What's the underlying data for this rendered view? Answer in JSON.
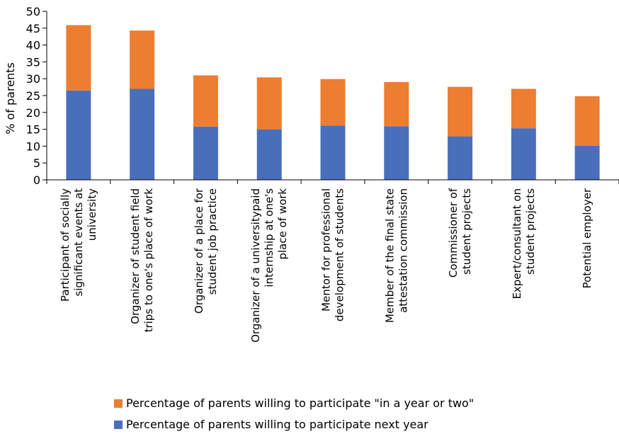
{
  "chart_data": {
    "type": "bar",
    "stacked": true,
    "ylabel": "% of parents",
    "ylim": [
      0,
      50
    ],
    "yticks": [
      0,
      5,
      10,
      15,
      20,
      25,
      30,
      35,
      40,
      45,
      50
    ],
    "categories": [
      [
        "Participant of socially",
        "significant events at",
        "university"
      ],
      [
        "Organizer of student field",
        "trips to one's place of work"
      ],
      [
        "Organizer of a place for",
        "student job practice"
      ],
      [
        "Organizer of a universitypaid",
        "internship at one's",
        "place of work"
      ],
      [
        "Mentor for professional",
        "development of students"
      ],
      [
        "Member of the final state",
        "attestation commission"
      ],
      [
        "Commissioner of",
        "student projects"
      ],
      [
        "Expert/consultant on",
        "student projects"
      ],
      [
        "Potential employer"
      ]
    ],
    "series": [
      {
        "name": "Percentage of parents willing to participate next year",
        "color": "#4a6fba",
        "values": [
          26.5,
          27,
          15.8,
          15,
          16.1,
          15.9,
          12.9,
          15.3,
          10.1
        ]
      },
      {
        "name": "Percentage of parents willing to participate \"in a year or two\"",
        "color": "#ed7d31",
        "values": [
          19.4,
          17.3,
          15.2,
          15.4,
          13.8,
          13.1,
          14.7,
          11.7,
          14.7
        ]
      }
    ],
    "legend_position": "bottom",
    "legend_order": [
      1,
      0
    ],
    "grid": false
  }
}
